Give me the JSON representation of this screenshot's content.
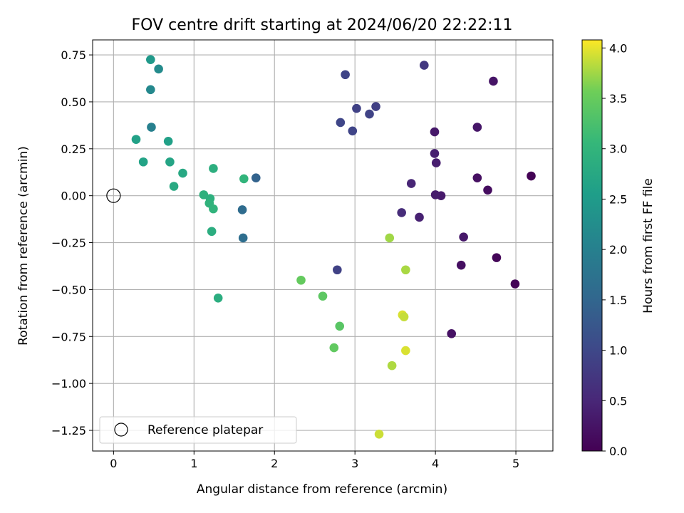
{
  "chart_data": {
    "type": "scatter",
    "title": "FOV centre drift starting at 2024/06/20 22:22:11",
    "xlabel": "Angular distance from reference (arcmin)",
    "ylabel": "Rotation from reference (arcmin)",
    "xlim": [
      -0.26,
      5.46
    ],
    "ylim": [
      -1.36,
      0.83
    ],
    "xticks": [
      0,
      1,
      2,
      3,
      4,
      5
    ],
    "xtick_labels": [
      "0",
      "1",
      "2",
      "3",
      "4",
      "5"
    ],
    "yticks": [
      0.75,
      0.5,
      0.25,
      0.0,
      -0.25,
      -0.5,
      -0.75,
      -1.0,
      -1.25
    ],
    "ytick_labels": [
      "0.75",
      "0.50",
      "0.25",
      "0.00",
      "−0.25",
      "−0.50",
      "−0.75",
      "−1.00",
      "−1.25"
    ],
    "grid": true,
    "colormap": "viridis",
    "colorbar": {
      "label": "Hours from first FF file",
      "range": [
        0.0,
        4.08
      ],
      "ticks": [
        0.0,
        0.5,
        1.0,
        1.5,
        2.0,
        2.5,
        3.0,
        3.5,
        4.0
      ],
      "tick_labels": [
        "0.0",
        "0.5",
        "1.0",
        "1.5",
        "2.0",
        "2.5",
        "3.0",
        "3.5",
        "4.0"
      ]
    },
    "legend": {
      "position": "lower-left",
      "entries": [
        {
          "label": "Reference platepar",
          "marker": "open-circle"
        }
      ]
    },
    "reference_point": {
      "x": 0.0,
      "y": 0.0
    },
    "points": [
      {
        "x": 5.19,
        "y": 0.105,
        "c": 0.02
      },
      {
        "x": 4.99,
        "y": -0.47,
        "c": 0.04
      },
      {
        "x": 4.76,
        "y": -0.33,
        "c": 0.06
      },
      {
        "x": 4.65,
        "y": 0.03,
        "c": 0.15
      },
      {
        "x": 4.52,
        "y": 0.095,
        "c": 0.2
      },
      {
        "x": 4.72,
        "y": 0.61,
        "c": 0.25
      },
      {
        "x": 4.52,
        "y": 0.365,
        "c": 0.28
      },
      {
        "x": 4.35,
        "y": -0.22,
        "c": 0.3
      },
      {
        "x": 4.32,
        "y": -0.37,
        "c": 0.18
      },
      {
        "x": 4.2,
        "y": -0.735,
        "c": 0.22
      },
      {
        "x": 4.07,
        "y": 0.0,
        "c": 0.32
      },
      {
        "x": 4.0,
        "y": 0.005,
        "c": 0.35
      },
      {
        "x": 4.01,
        "y": 0.175,
        "c": 0.38
      },
      {
        "x": 3.99,
        "y": 0.225,
        "c": 0.4
      },
      {
        "x": 3.99,
        "y": 0.34,
        "c": 0.3
      },
      {
        "x": 3.8,
        "y": -0.115,
        "c": 0.42
      },
      {
        "x": 3.7,
        "y": 0.065,
        "c": 0.48
      },
      {
        "x": 3.58,
        "y": -0.09,
        "c": 0.58
      },
      {
        "x": 3.86,
        "y": 0.695,
        "c": 0.75
      },
      {
        "x": 2.88,
        "y": 0.645,
        "c": 0.95
      },
      {
        "x": 3.26,
        "y": 0.475,
        "c": 0.88
      },
      {
        "x": 3.02,
        "y": 0.465,
        "c": 0.9
      },
      {
        "x": 3.18,
        "y": 0.435,
        "c": 0.92
      },
      {
        "x": 2.82,
        "y": 0.39,
        "c": 0.98
      },
      {
        "x": 2.97,
        "y": 0.345,
        "c": 0.95
      },
      {
        "x": 2.78,
        "y": -0.395,
        "c": 0.9
      },
      {
        "x": 1.77,
        "y": 0.095,
        "c": 1.45
      },
      {
        "x": 1.6,
        "y": -0.075,
        "c": 1.6
      },
      {
        "x": 1.61,
        "y": -0.225,
        "c": 1.65
      },
      {
        "x": 0.46,
        "y": 0.725,
        "c": 2.45
      },
      {
        "x": 0.56,
        "y": 0.675,
        "c": 2.2
      },
      {
        "x": 0.46,
        "y": 0.565,
        "c": 2.15
      },
      {
        "x": 0.47,
        "y": 0.365,
        "c": 2.0
      },
      {
        "x": 0.28,
        "y": 0.3,
        "c": 2.62
      },
      {
        "x": 0.68,
        "y": 0.29,
        "c": 2.6
      },
      {
        "x": 0.37,
        "y": 0.18,
        "c": 2.65
      },
      {
        "x": 0.7,
        "y": 0.18,
        "c": 2.68
      },
      {
        "x": 0.86,
        "y": 0.12,
        "c": 2.75
      },
      {
        "x": 0.75,
        "y": 0.05,
        "c": 2.78
      },
      {
        "x": 1.24,
        "y": 0.145,
        "c": 2.88
      },
      {
        "x": 1.62,
        "y": 0.09,
        "c": 3.0
      },
      {
        "x": 1.12,
        "y": 0.005,
        "c": 2.92
      },
      {
        "x": 1.2,
        "y": -0.015,
        "c": 2.9
      },
      {
        "x": 1.19,
        "y": -0.04,
        "c": 2.96
      },
      {
        "x": 1.24,
        "y": -0.07,
        "c": 2.98
      },
      {
        "x": 1.22,
        "y": -0.19,
        "c": 2.85
      },
      {
        "x": 1.3,
        "y": -0.545,
        "c": 2.85
      },
      {
        "x": 2.33,
        "y": -0.45,
        "c": 3.48
      },
      {
        "x": 2.6,
        "y": -0.535,
        "c": 3.42
      },
      {
        "x": 2.81,
        "y": -0.695,
        "c": 3.38
      },
      {
        "x": 2.74,
        "y": -0.81,
        "c": 3.45
      },
      {
        "x": 3.43,
        "y": -0.225,
        "c": 3.75
      },
      {
        "x": 3.63,
        "y": -0.395,
        "c": 3.78
      },
      {
        "x": 3.59,
        "y": -0.635,
        "c": 3.95
      },
      {
        "x": 3.61,
        "y": -0.645,
        "c": 3.88
      },
      {
        "x": 3.63,
        "y": -0.825,
        "c": 3.95
      },
      {
        "x": 3.46,
        "y": -0.905,
        "c": 3.8
      },
      {
        "x": 3.3,
        "y": -1.27,
        "c": 3.9
      }
    ]
  }
}
